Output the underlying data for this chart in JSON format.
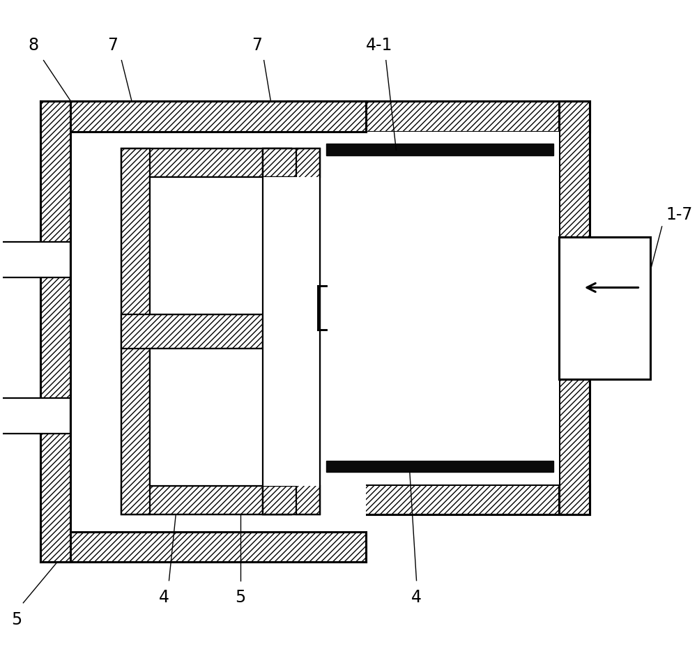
{
  "bg_color": "#ffffff",
  "lc": "#000000",
  "fig_width": 10.0,
  "fig_height": 9.31,
  "lw_thick": 2.2,
  "lw_med": 1.6,
  "lw_thin": 1.2,
  "hatch": "////",
  "fs_label": 17
}
